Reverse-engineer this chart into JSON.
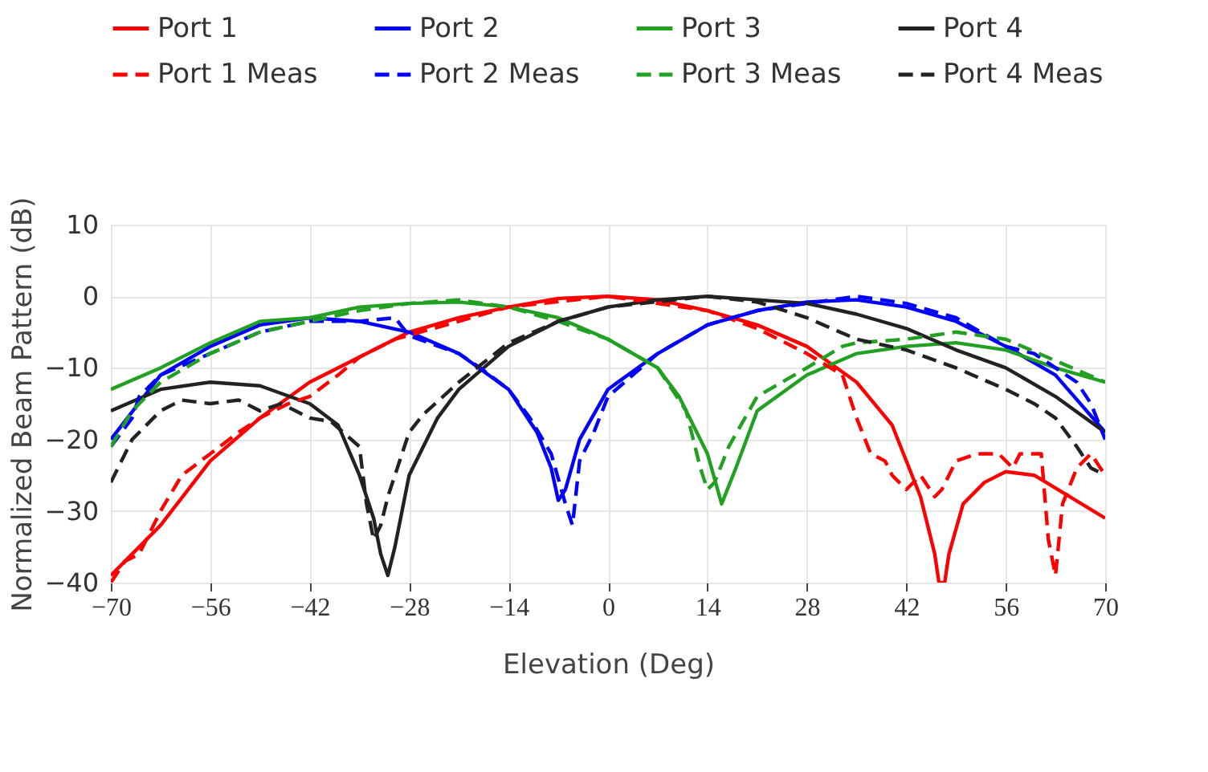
{
  "chart_data": {
    "type": "line",
    "xlabel": "Elevation (Deg)",
    "ylabel": "Normalized Beam Pattern (dB)",
    "xlim": [
      -70,
      70
    ],
    "xticks": [
      -70,
      -56,
      -42,
      -28,
      -14,
      0,
      14,
      28,
      42,
      56,
      70
    ],
    "ylim": [
      -40,
      10
    ],
    "yticks": [
      -40,
      -30,
      -20,
      -10,
      0,
      10
    ],
    "grid": true,
    "legend": "top",
    "series": [
      {
        "name": "Port 1",
        "color": "#ff0000",
        "line_style": "solid",
        "x": [
          -70,
          -63,
          -56,
          -49,
          -42,
          -35,
          -28,
          -21,
          -14,
          -7,
          0,
          7,
          14,
          21,
          28,
          35,
          40,
          44,
          46,
          46.6,
          47.4,
          48,
          50,
          53,
          56,
          60,
          65,
          70
        ],
        "values": [
          -39,
          -32,
          -23,
          -17,
          -12,
          -8.5,
          -5,
          -3,
          -1.5,
          -0.3,
          0,
          -0.5,
          -2,
          -4,
          -7,
          -12,
          -18,
          -28,
          -36,
          -40,
          -40,
          -36,
          -29,
          -26,
          -24.5,
          -25,
          -28,
          -31
        ]
      },
      {
        "name": "Port 2",
        "color": "#0000ff",
        "line_style": "solid",
        "x": [
          -70,
          -63,
          -56,
          -49,
          -42,
          -35,
          -28,
          -21,
          -14,
          -10,
          -8,
          -7,
          -6,
          -4,
          0,
          7,
          14,
          21,
          28,
          35,
          42,
          49,
          56,
          63,
          70
        ],
        "values": [
          -20,
          -11,
          -7,
          -4,
          -3,
          -3.5,
          -5,
          -8,
          -13,
          -19,
          -24,
          -28.5,
          -27,
          -20,
          -13,
          -8,
          -4,
          -2,
          -0.8,
          -0.5,
          -1.5,
          -3.5,
          -7,
          -11,
          -19
        ]
      },
      {
        "name": "Port 3",
        "color": "#22a022",
        "line_style": "solid",
        "x": [
          -70,
          -63,
          -56,
          -49,
          -42,
          -35,
          -28,
          -21,
          -14,
          -7,
          0,
          7,
          10,
          14,
          16,
          18,
          21,
          28,
          35,
          42,
          49,
          56,
          63,
          70
        ],
        "values": [
          -13,
          -10,
          -6.5,
          -3.5,
          -3,
          -1.5,
          -1,
          -0.8,
          -1.5,
          -3,
          -6,
          -10,
          -14,
          -22,
          -29,
          -24,
          -16,
          -11,
          -8,
          -7,
          -6.5,
          -7.5,
          -10,
          -12
        ]
      },
      {
        "name": "Port 4",
        "color": "#222222",
        "line_style": "solid",
        "x": [
          -70,
          -63,
          -56,
          -49,
          -42,
          -38,
          -35,
          -33,
          -32,
          -31,
          -30,
          -28,
          -24,
          -21,
          -14,
          -7,
          0,
          7,
          14,
          21,
          28,
          35,
          42,
          49,
          56,
          63,
          70
        ],
        "values": [
          -16,
          -13,
          -12,
          -12.5,
          -15,
          -18,
          -25,
          -31,
          -36,
          -39,
          -35,
          -25,
          -17,
          -13,
          -7,
          -3.5,
          -1.5,
          -0.5,
          0,
          -0.5,
          -1,
          -2.5,
          -4.5,
          -7.5,
          -10,
          -14,
          -19
        ]
      },
      {
        "name": "Port 1 Meas",
        "color": "#ff0000",
        "line_style": "dashed",
        "x": [
          -70,
          -68,
          -66,
          -63,
          -60,
          -56,
          -52,
          -49,
          -45,
          -42,
          -38,
          -35,
          -30,
          -21,
          -14,
          0,
          14,
          21,
          28,
          33,
          35,
          37,
          39,
          40,
          42,
          44,
          46,
          47,
          49,
          52,
          55,
          57,
          58,
          61,
          62,
          63,
          64,
          66,
          68,
          70
        ],
        "values": [
          -40,
          -37,
          -36,
          -30,
          -25,
          -22,
          -19,
          -17,
          -15,
          -14,
          -11,
          -8.5,
          -6,
          -3.5,
          -1.5,
          0,
          -2,
          -4.5,
          -8,
          -11,
          -17,
          -22,
          -23,
          -25,
          -27,
          -25,
          -28,
          -27,
          -23,
          -22,
          -22,
          -24,
          -22,
          -22,
          -34,
          -39,
          -29,
          -24,
          -22,
          -25
        ]
      },
      {
        "name": "Port 2 Meas",
        "color": "#0000ff",
        "line_style": "dashed",
        "x": [
          -70,
          -67,
          -66,
          -63,
          -56,
          -49,
          -42,
          -35,
          -30,
          -28,
          -21,
          -18,
          -14,
          -11,
          -8,
          -6,
          -5,
          -4,
          -2,
          0,
          7,
          14,
          21,
          28,
          35,
          42,
          49,
          56,
          60,
          63,
          66,
          68,
          70
        ],
        "values": [
          -21,
          -17,
          -14,
          -11,
          -8,
          -5,
          -3.5,
          -3.5,
          -3,
          -5.5,
          -8,
          -10,
          -13,
          -17,
          -22,
          -29,
          -32,
          -23,
          -19,
          -14,
          -8,
          -4,
          -2,
          -1,
          0,
          -1,
          -3,
          -7,
          -8,
          -10,
          -12,
          -15,
          -20
        ]
      },
      {
        "name": "Port 3 Meas",
        "color": "#22a022",
        "line_style": "dashed",
        "x": [
          -70,
          -67,
          -63,
          -56,
          -49,
          -42,
          -35,
          -28,
          -21,
          -14,
          -7,
          0,
          7,
          11,
          13,
          14,
          15,
          17,
          21,
          28,
          33,
          35,
          42,
          49,
          56,
          63,
          70
        ],
        "values": [
          -21,
          -16,
          -12,
          -8,
          -5,
          -3.5,
          -2,
          -1,
          -0.5,
          -1.5,
          -3.5,
          -6,
          -10,
          -16,
          -24,
          -27,
          -26,
          -21,
          -14,
          -10,
          -7,
          -6.5,
          -6,
          -5,
          -6,
          -9,
          -12
        ]
      },
      {
        "name": "Port 4 Meas",
        "color": "#222222",
        "line_style": "dashed",
        "x": [
          -70,
          -67,
          -63,
          -60,
          -56,
          -52,
          -49,
          -46,
          -42,
          -39,
          -35,
          -34,
          -33,
          -32,
          -31,
          -29,
          -28,
          -26,
          -21,
          -14,
          -7,
          0,
          14,
          21,
          28,
          35,
          42,
          49,
          56,
          60,
          63,
          66,
          68,
          70
        ],
        "values": [
          -26,
          -20,
          -16,
          -14.5,
          -15,
          -14.5,
          -16,
          -15,
          -17,
          -17.5,
          -21,
          -29,
          -34,
          -32,
          -28,
          -22,
          -19,
          -16.5,
          -12,
          -6.5,
          -3.5,
          -1.5,
          0,
          -0.8,
          -3,
          -6,
          -7.5,
          -10,
          -13,
          -15,
          -17,
          -21,
          -24,
          -25
        ]
      }
    ]
  }
}
